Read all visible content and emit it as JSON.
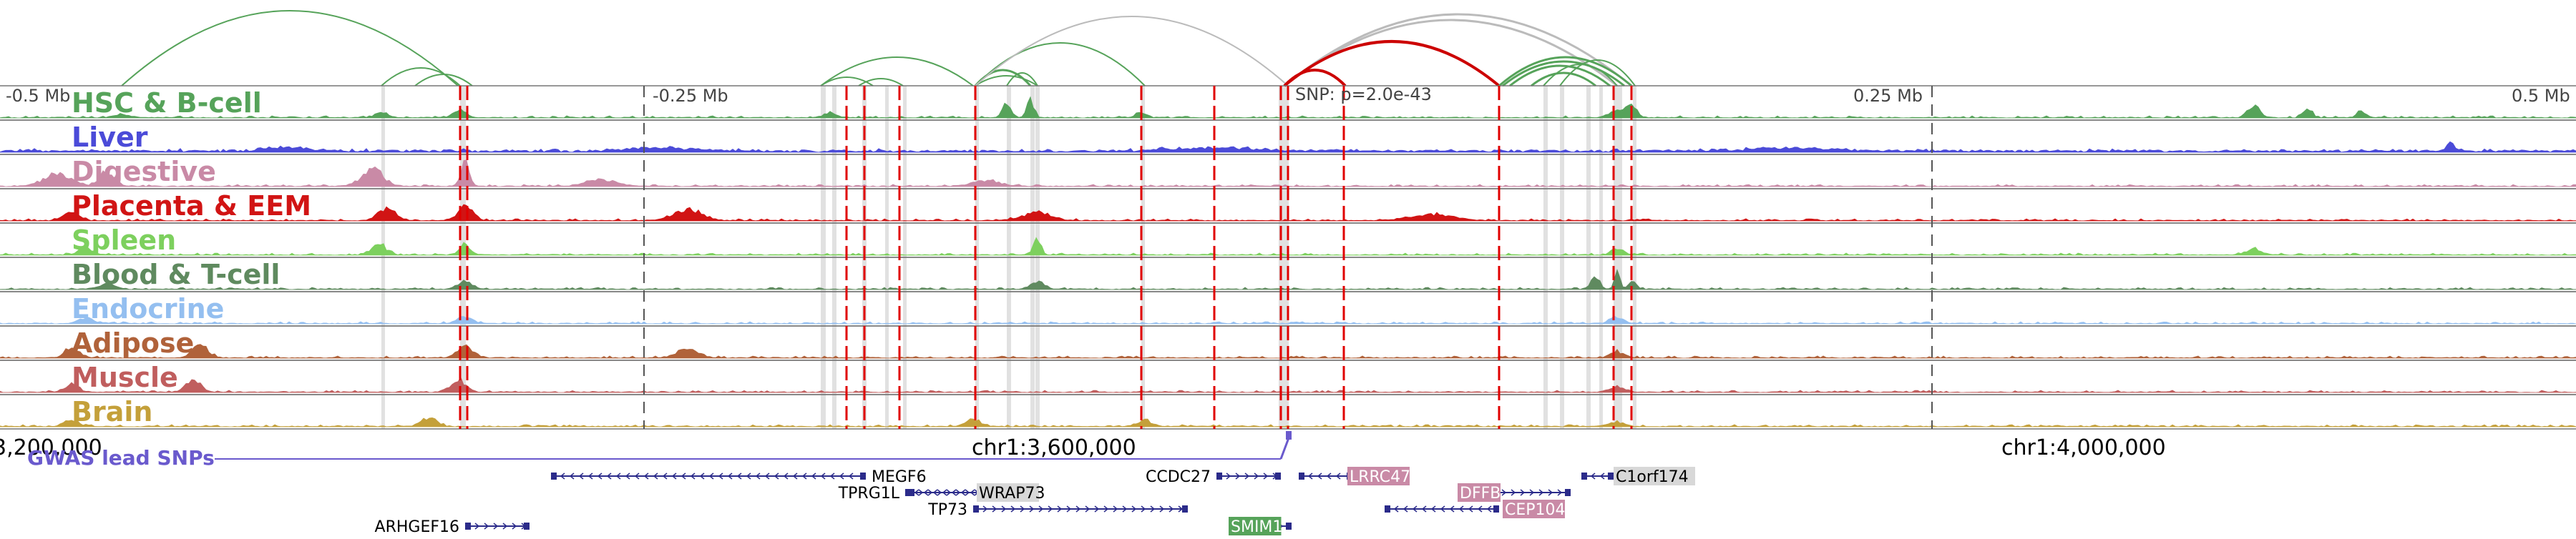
{
  "tracks": [
    {
      "label": "HSC & B-cell",
      "color": "#56a35a"
    },
    {
      "label": "Liver",
      "color": "#4b4bd8"
    },
    {
      "label": "Digestive",
      "color": "#c98aa6"
    },
    {
      "label": "Placenta & EEM",
      "color": "#d11414"
    },
    {
      "label": "Spleen",
      "color": "#7dd05e"
    },
    {
      "label": "Blood & T-cell",
      "color": "#5f8a5f"
    },
    {
      "label": "Endocrine",
      "color": "#94bff0"
    },
    {
      "label": "Adipose",
      "color": "#b0623a"
    },
    {
      "label": "Muscle",
      "color": "#c05e5e"
    },
    {
      "label": "Brain",
      "color": "#c4a03a"
    }
  ],
  "scale": {
    "left": "-0.5 Mb",
    "quarter_left": "-0.25 Mb",
    "quarter_right": "0.25 Mb",
    "right": "0.5 Mb",
    "snp_label": "SNP: p=2.0e-43"
  },
  "coordinates": [
    "3,200,000",
    "chr1:3,600,000",
    "chr1:4,000,000"
  ],
  "gwas_label": "GWAS lead SNPs",
  "genes": [
    {
      "name": "MEGF6",
      "strand": "-",
      "row": 0
    },
    {
      "name": "CCDC27",
      "strand": "+",
      "row": 0
    },
    {
      "name": "LRRC47",
      "strand": "-",
      "row": 0,
      "highlight": "#c98aa6"
    },
    {
      "name": "C1orf174",
      "strand": "-",
      "row": 0,
      "highlight": "#d8d8d8"
    },
    {
      "name": "TPRG1L",
      "strand": "+",
      "row": 1
    },
    {
      "name": "WRAP73",
      "strand": "-",
      "row": 1,
      "highlight": "#d8d8d8"
    },
    {
      "name": "DFFB",
      "strand": "+",
      "row": 1,
      "highlight": "#c98aa6"
    },
    {
      "name": "TP73",
      "strand": "+",
      "row": 2
    },
    {
      "name": "CEP104",
      "strand": "-",
      "row": 2,
      "highlight": "#c98aa6"
    },
    {
      "name": "SMIM1",
      "strand": "+",
      "row": 3,
      "highlight": "#56a35a"
    },
    {
      "name": "ARHGEF16",
      "strand": "+",
      "row": 3
    }
  ],
  "colors": {
    "link_green": "#56a35a",
    "link_gray": "#bbbbbb",
    "link_red": "#cc0000",
    "highlight_line": "#e00000",
    "gwas": "#6a5acd",
    "gene_body": "#2b2b8a"
  }
}
